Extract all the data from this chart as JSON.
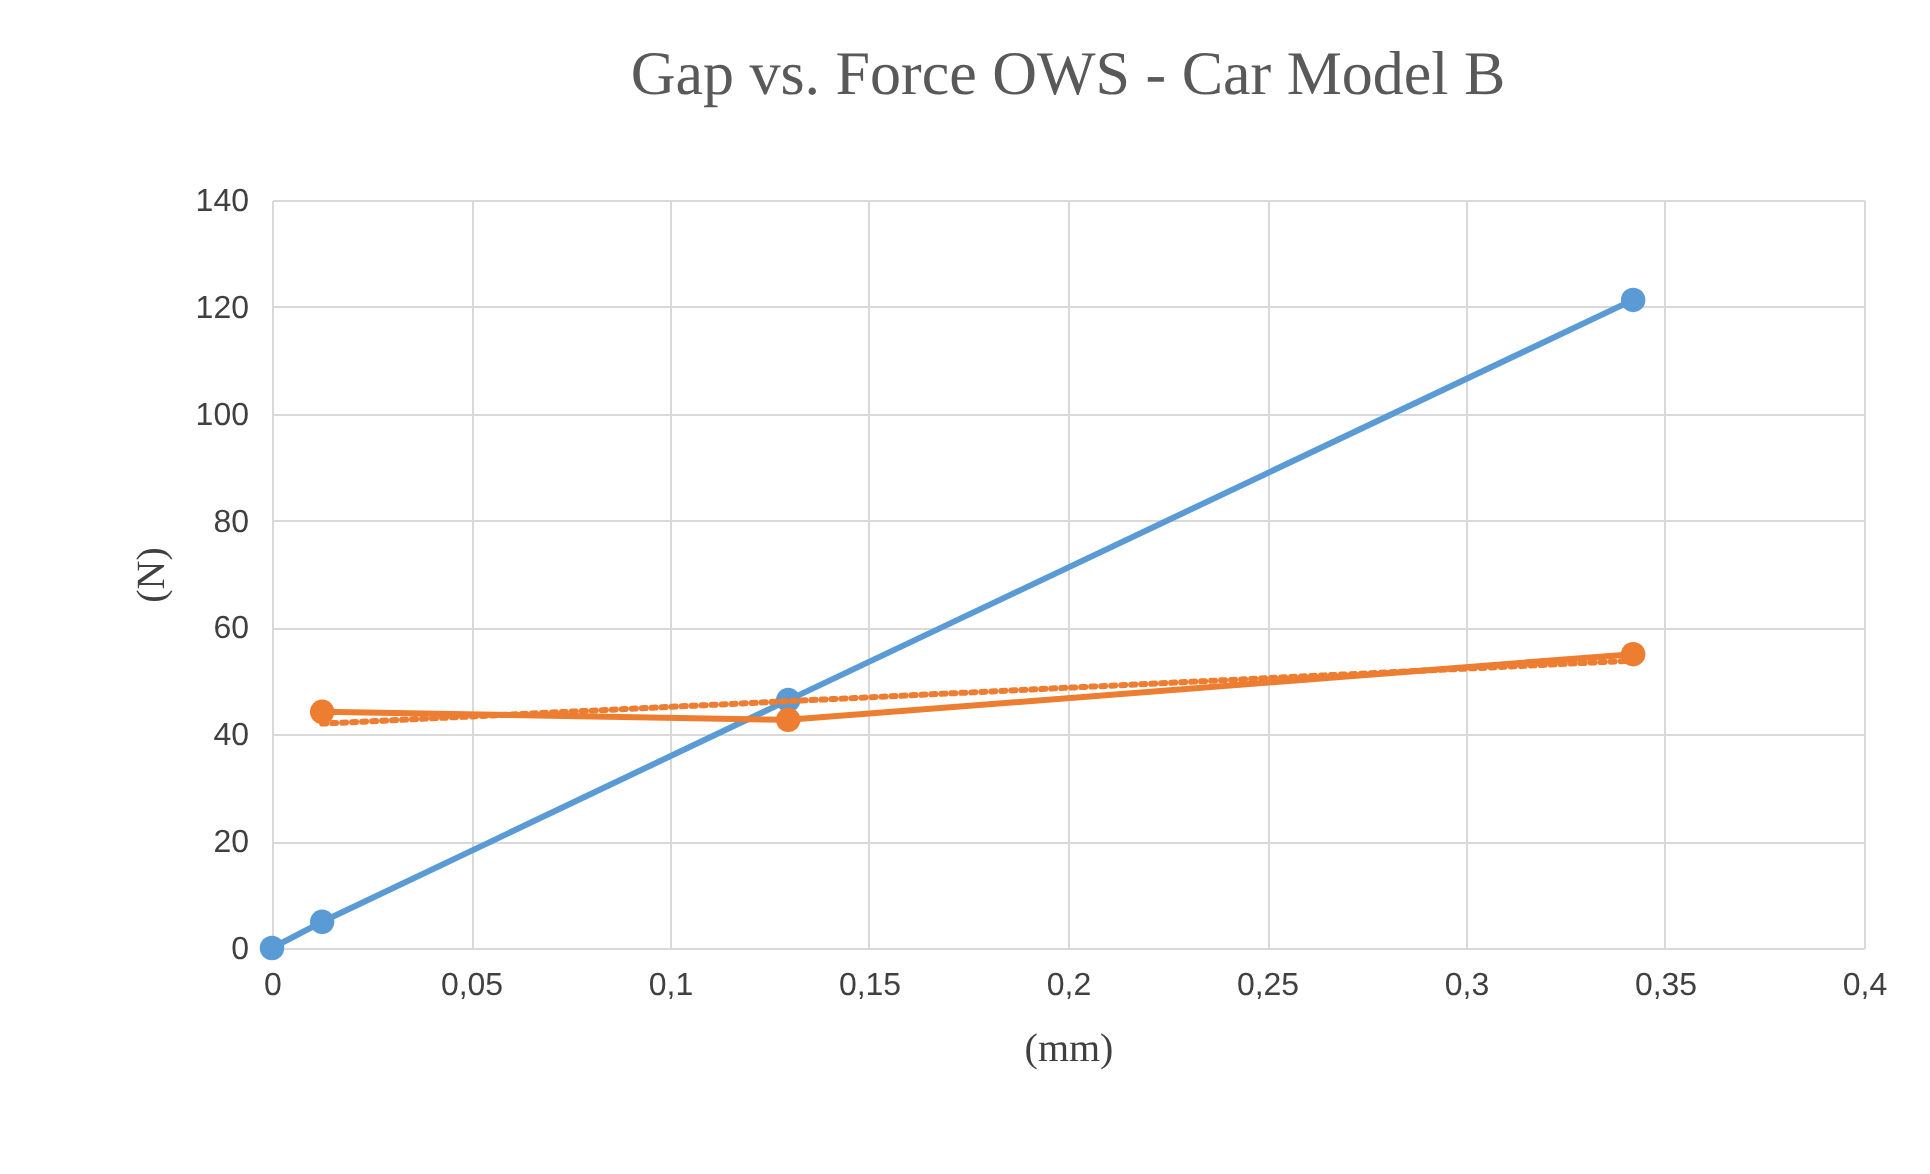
{
  "chart_data": {
    "type": "line",
    "title": "Gap vs. Force OWS - Car Model B",
    "xlabel": "(mm)",
    "ylabel": "(N)",
    "xlim": [
      0,
      0.4
    ],
    "xticks": [
      0,
      {
        "value": 0.05,
        "label": "0,05"
      },
      {
        "value": 0.1,
        "label": "0,1"
      },
      {
        "value": 0.15,
        "label": "0,15"
      },
      {
        "value": 0.2,
        "label": "0,2"
      },
      {
        "value": 0.25,
        "label": "0,25"
      },
      {
        "value": 0.3,
        "label": "0,3"
      },
      {
        "value": 0.35,
        "label": "0,35"
      },
      {
        "value": 0.4,
        "label": "0,4"
      }
    ],
    "ylim": [
      0,
      140
    ],
    "yticks": [
      0,
      20,
      40,
      60,
      80,
      100,
      120,
      140
    ],
    "grid": true,
    "marker": "circle",
    "line_style": "solid",
    "series": [
      {
        "color": "#5b9bd5",
        "x": [
          0,
          0.0126,
          0.1297,
          0.342
        ],
        "values": [
          0,
          4.9,
          46.4,
          121.3
        ]
      },
      {
        "color": "#ed7d31",
        "x": [
          0.0126,
          0.1297,
          0.342
        ],
        "values": [
          44.2,
          42.7,
          55
        ]
      },
      {
        "color": "#ed7d31",
        "x": [
          0.0126,
          0.342
        ],
        "values": [
          42,
          53.8
        ],
        "marker": "none",
        "line_style": "dotted"
      }
    ]
  }
}
